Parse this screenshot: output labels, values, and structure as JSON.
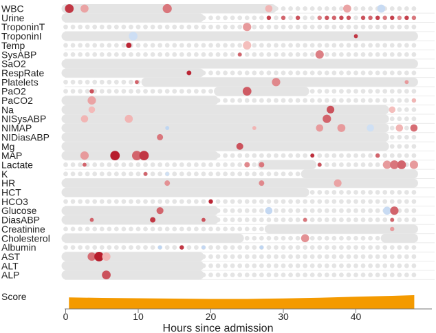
{
  "chart_data": {
    "type": "heatmap",
    "xlabel": "Hours since admission",
    "xlim": [
      0,
      48.5
    ],
    "xticks": [
      0,
      10,
      20,
      30,
      40
    ],
    "rows": [
      "WBC",
      "Urine",
      "TroponinT",
      "TroponinI",
      "Temp",
      "SysABP",
      "SaO2",
      "RespRate",
      "Platelets",
      "PaO2",
      "PaCO2",
      "Na",
      "NISysABP",
      "NIMAP",
      "NIDiasABP",
      "Mg",
      "MAP",
      "Lactate",
      "K",
      "HR",
      "HCT",
      "HCO3",
      "Glucose",
      "DiasABP",
      "Creatinine",
      "Cholesterol",
      "Albumin",
      "AST",
      "ALT",
      "ALP"
    ],
    "observed_bands": [
      {
        "row": "WBC",
        "from": 0,
        "to": 28.5
      },
      {
        "row": "Urine",
        "from": 0,
        "to": 18.5
      },
      {
        "row": "TroponinI",
        "from": 0,
        "to": 48
      },
      {
        "row": "SaO2",
        "from": 0,
        "to": 48
      },
      {
        "row": "RespRate",
        "from": 0,
        "to": 18.5
      },
      {
        "row": "Platelets",
        "from": 11,
        "to": 48
      },
      {
        "row": "PaO2",
        "from": 21,
        "to": 33
      },
      {
        "row": "PaCO2",
        "from": 0,
        "to": 20.5
      },
      {
        "row": "Na",
        "from": 0,
        "to": 44
      },
      {
        "row": "NISysABP",
        "from": 0,
        "to": 44
      },
      {
        "row": "NIMAP",
        "from": 0,
        "to": 44
      },
      {
        "row": "NIDiasABP",
        "from": 0,
        "to": 44
      },
      {
        "row": "Mg",
        "from": 0,
        "to": 44
      },
      {
        "row": "MAP",
        "from": 0,
        "to": 20.5
      },
      {
        "row": "Lactate",
        "from": 27,
        "to": 34
      },
      {
        "row": "K",
        "from": 33,
        "to": 48
      },
      {
        "row": "HR",
        "from": 0,
        "to": 48
      },
      {
        "row": "HCT",
        "from": 0,
        "to": 33
      },
      {
        "row": "Glucose",
        "from": 0,
        "to": 20.5
      },
      {
        "row": "DiasABP",
        "from": 0,
        "to": 20.5
      },
      {
        "row": "Creatinine",
        "from": 28,
        "to": 48
      },
      {
        "row": "Cholesterol",
        "from": 0,
        "to": 24
      },
      {
        "row": "Cholesterol",
        "from": 44,
        "to": 48
      },
      {
        "row": "AST",
        "from": 0,
        "to": 18.5
      },
      {
        "row": "ALT",
        "from": 0,
        "to": 18.5
      },
      {
        "row": "ALP",
        "from": 0,
        "to": 18.5
      }
    ],
    "highlights": [
      {
        "row": "WBC",
        "x": 0.5,
        "v": 0.85,
        "s": 1.2
      },
      {
        "row": "WBC",
        "x": 2.6,
        "v": 0.25,
        "s": 1.1
      },
      {
        "row": "WBC",
        "x": 14,
        "v": 0.5,
        "s": 1.25
      },
      {
        "row": "WBC",
        "x": 28,
        "v": 0.15,
        "s": 1
      },
      {
        "row": "WBC",
        "x": 38.8,
        "v": 0.25,
        "s": 1.1
      },
      {
        "row": "WBC",
        "x": 43.5,
        "v": -0.3,
        "s": 1.1
      },
      {
        "row": "Urine",
        "x": 28,
        "v": 0.8,
        "s": 0.6
      },
      {
        "row": "Urine",
        "x": 30,
        "v": 0.6,
        "s": 0.6
      },
      {
        "row": "Urine",
        "x": 32,
        "v": 0.7,
        "s": 0.6
      },
      {
        "row": "Urine",
        "x": 35,
        "v": 0.45,
        "s": 0.6
      },
      {
        "row": "Urine",
        "x": 36,
        "v": 0.7,
        "s": 0.6
      },
      {
        "row": "Urine",
        "x": 37,
        "v": 0.6,
        "s": 0.6
      },
      {
        "row": "Urine",
        "x": 38,
        "v": 0.75,
        "s": 0.6
      },
      {
        "row": "Urine",
        "x": 39,
        "v": 0.7,
        "s": 0.6
      },
      {
        "row": "Urine",
        "x": 41,
        "v": 0.7,
        "s": 0.6
      },
      {
        "row": "Urine",
        "x": 42,
        "v": 0.6,
        "s": 0.6
      },
      {
        "row": "Urine",
        "x": 43,
        "v": 0.8,
        "s": 0.6
      },
      {
        "row": "Urine",
        "x": 44,
        "v": 0.5,
        "s": 0.6
      },
      {
        "row": "Urine",
        "x": 45,
        "v": 0.8,
        "s": 0.6
      },
      {
        "row": "Urine",
        "x": 46,
        "v": 0.4,
        "s": 0.6
      },
      {
        "row": "Urine",
        "x": 47,
        "v": 0.8,
        "s": 0.6
      },
      {
        "row": "Urine",
        "x": 48,
        "v": 0.5,
        "s": 0.6
      },
      {
        "row": "TroponinT",
        "x": 25,
        "v": 0.3,
        "s": 1.15
      },
      {
        "row": "TroponinI",
        "x": 9.3,
        "v": -0.2,
        "s": 1.2
      },
      {
        "row": "TroponinI",
        "x": 40,
        "v": 0.85,
        "s": 0.55
      },
      {
        "row": "Temp",
        "x": 8.7,
        "v": 0.95,
        "s": 0.75
      },
      {
        "row": "Temp",
        "x": 25,
        "v": 0.1,
        "s": 1.15
      },
      {
        "row": "SysABP",
        "x": 24,
        "v": 0.6,
        "s": 0.55
      },
      {
        "row": "SysABP",
        "x": 35,
        "v": 0.45,
        "s": 1.15
      },
      {
        "row": "RespRate",
        "x": 17,
        "v": 0.95,
        "s": 0.65
      },
      {
        "row": "Platelets",
        "x": 9.8,
        "v": 0.6,
        "s": 0.55
      },
      {
        "row": "Platelets",
        "x": 29,
        "v": 0.4,
        "s": 1.15
      },
      {
        "row": "Platelets",
        "x": 47,
        "v": 0.3,
        "s": 0.55
      },
      {
        "row": "PaO2",
        "x": 3.6,
        "v": 0.7,
        "s": 0.6
      },
      {
        "row": "PaO2",
        "x": 25,
        "v": 0.65,
        "s": 1.2
      },
      {
        "row": "PaCO2",
        "x": 3.6,
        "v": 0.25,
        "s": 1.15
      },
      {
        "row": "PaCO2",
        "x": 48,
        "v": 0.15,
        "s": 0.6
      },
      {
        "row": "Na",
        "x": 3.6,
        "v": 0.12,
        "s": 0.9
      },
      {
        "row": "Na",
        "x": 36.5,
        "v": 0.7,
        "s": 1.05
      },
      {
        "row": "Na",
        "x": 45,
        "v": 0.1,
        "s": 0.9
      },
      {
        "row": "NISysABP",
        "x": 2.6,
        "v": 0.15,
        "s": 1
      },
      {
        "row": "NISysABP",
        "x": 8.7,
        "v": 0.15,
        "s": 1.1
      },
      {
        "row": "NISysABP",
        "x": 36,
        "v": 0.6,
        "s": 1.15
      },
      {
        "row": "NIMAP",
        "x": 14,
        "v": -0.5,
        "s": 0.55
      },
      {
        "row": "NIMAP",
        "x": 26,
        "v": 0.15,
        "s": 0.55
      },
      {
        "row": "NIMAP",
        "x": 35,
        "v": 0.3,
        "s": 1
      },
      {
        "row": "NIMAP",
        "x": 38,
        "v": 0.3,
        "s": 1.1
      },
      {
        "row": "NIMAP",
        "x": 42,
        "v": -0.15,
        "s": 1
      },
      {
        "row": "NIMAP",
        "x": 46,
        "v": 0.15,
        "s": 1
      },
      {
        "row": "NIMAP",
        "x": 48,
        "v": 0.55,
        "s": 1
      },
      {
        "row": "NIDiasABP",
        "x": 13,
        "v": 0.5,
        "s": 0.85
      },
      {
        "row": "Mg",
        "x": 24,
        "v": 0.7,
        "s": 0.95
      },
      {
        "row": "MAP",
        "x": 2.6,
        "v": 0.3,
        "s": 1.15
      },
      {
        "row": "MAP",
        "x": 6.8,
        "v": 1.0,
        "s": 1.3
      },
      {
        "row": "MAP",
        "x": 9.8,
        "v": 0.6,
        "s": 1.3
      },
      {
        "row": "MAP",
        "x": 10.8,
        "v": 0.85,
        "s": 1.3
      },
      {
        "row": "MAP",
        "x": 34,
        "v": 0.9,
        "s": 0.55
      },
      {
        "row": "MAP",
        "x": 43,
        "v": 0.6,
        "s": 0.6
      },
      {
        "row": "Lactate",
        "x": 2.6,
        "v": 0.6,
        "s": 0.55
      },
      {
        "row": "Lactate",
        "x": 25,
        "v": 0.4,
        "s": 0.75
      },
      {
        "row": "Lactate",
        "x": 27,
        "v": 0.5,
        "s": 0.75
      },
      {
        "row": "Lactate",
        "x": 35,
        "v": 0.7,
        "s": 0.55
      },
      {
        "row": "Lactate",
        "x": 44.3,
        "v": 0.3,
        "s": 1.15
      },
      {
        "row": "Lactate",
        "x": 45.3,
        "v": 0.5,
        "s": 1.2
      },
      {
        "row": "Lactate",
        "x": 46.3,
        "v": 0.6,
        "s": 1.2
      },
      {
        "row": "Lactate",
        "x": 48,
        "v": 0.3,
        "s": 1.15
      },
      {
        "row": "K",
        "x": 11,
        "v": 0.6,
        "s": 0.55
      },
      {
        "row": "K",
        "x": 14,
        "v": -0.15,
        "s": 0.55
      },
      {
        "row": "HR",
        "x": 14,
        "v": 0.35,
        "s": 0.75
      },
      {
        "row": "HR",
        "x": 27,
        "v": 0.4,
        "s": 0.75
      },
      {
        "row": "HR",
        "x": 37.5,
        "v": 0.25,
        "s": 1.05
      },
      {
        "row": "HCO3",
        "x": 20,
        "v": 0.95,
        "s": 0.6
      },
      {
        "row": "Glucose",
        "x": 13,
        "v": 0.6,
        "s": 0.95
      },
      {
        "row": "Glucose",
        "x": 28,
        "v": -0.4,
        "s": 1
      },
      {
        "row": "Glucose",
        "x": 44.3,
        "v": -0.3,
        "s": 1.1
      },
      {
        "row": "Glucose",
        "x": 45.3,
        "v": 0.6,
        "s": 1.15
      },
      {
        "row": "DiasABP",
        "x": 3.6,
        "v": 0.6,
        "s": 0.55
      },
      {
        "row": "DiasABP",
        "x": 12,
        "v": 0.85,
        "s": 0.75
      },
      {
        "row": "DiasABP",
        "x": 19,
        "v": 0.7,
        "s": 0.55
      },
      {
        "row": "DiasABP",
        "x": 33,
        "v": 0.5,
        "s": 0.55
      },
      {
        "row": "DiasABP",
        "x": 45,
        "v": 0.6,
        "s": 0.55
      },
      {
        "row": "Creatinine",
        "x": 45,
        "v": 0.3,
        "s": 0.6
      },
      {
        "row": "Cholesterol",
        "x": 33,
        "v": 0.35,
        "s": 1.1
      },
      {
        "row": "Albumin",
        "x": 13,
        "v": -0.5,
        "s": 0.55
      },
      {
        "row": "Albumin",
        "x": 16,
        "v": 0.85,
        "s": 0.6
      },
      {
        "row": "Albumin",
        "x": 19,
        "v": -0.4,
        "s": 0.55
      },
      {
        "row": "Albumin",
        "x": 27,
        "v": -0.5,
        "s": 0.55
      },
      {
        "row": "AST",
        "x": 3.6,
        "v": 0.55,
        "s": 1.15
      },
      {
        "row": "AST",
        "x": 4.6,
        "v": 1.0,
        "s": 1.3
      },
      {
        "row": "AST",
        "x": 5.6,
        "v": 0.15,
        "s": 1.15
      },
      {
        "row": "ALP",
        "x": 5.6,
        "v": 0.7,
        "s": 1.2
      }
    ],
    "score_series": {
      "name": "Score",
      "x": [
        0.5,
        5,
        10,
        15,
        20,
        25,
        30,
        35,
        40,
        45,
        48
      ],
      "y": [
        0.62,
        0.55,
        0.5,
        0.45,
        0.4,
        0.4,
        0.48,
        0.58,
        0.72,
        0.85,
        0.95
      ]
    },
    "colors": {
      "background_dot": "#e4e4e4",
      "grid": "#ebebeb",
      "score_fill": "#f49a00",
      "positive_high": "#b71c2c",
      "positive_low": "#fbd0cc",
      "negative": "#a8c7ee",
      "axis": "#777777"
    }
  },
  "labels": {
    "score_label": "Score",
    "xlabel": "Hours since admission"
  }
}
